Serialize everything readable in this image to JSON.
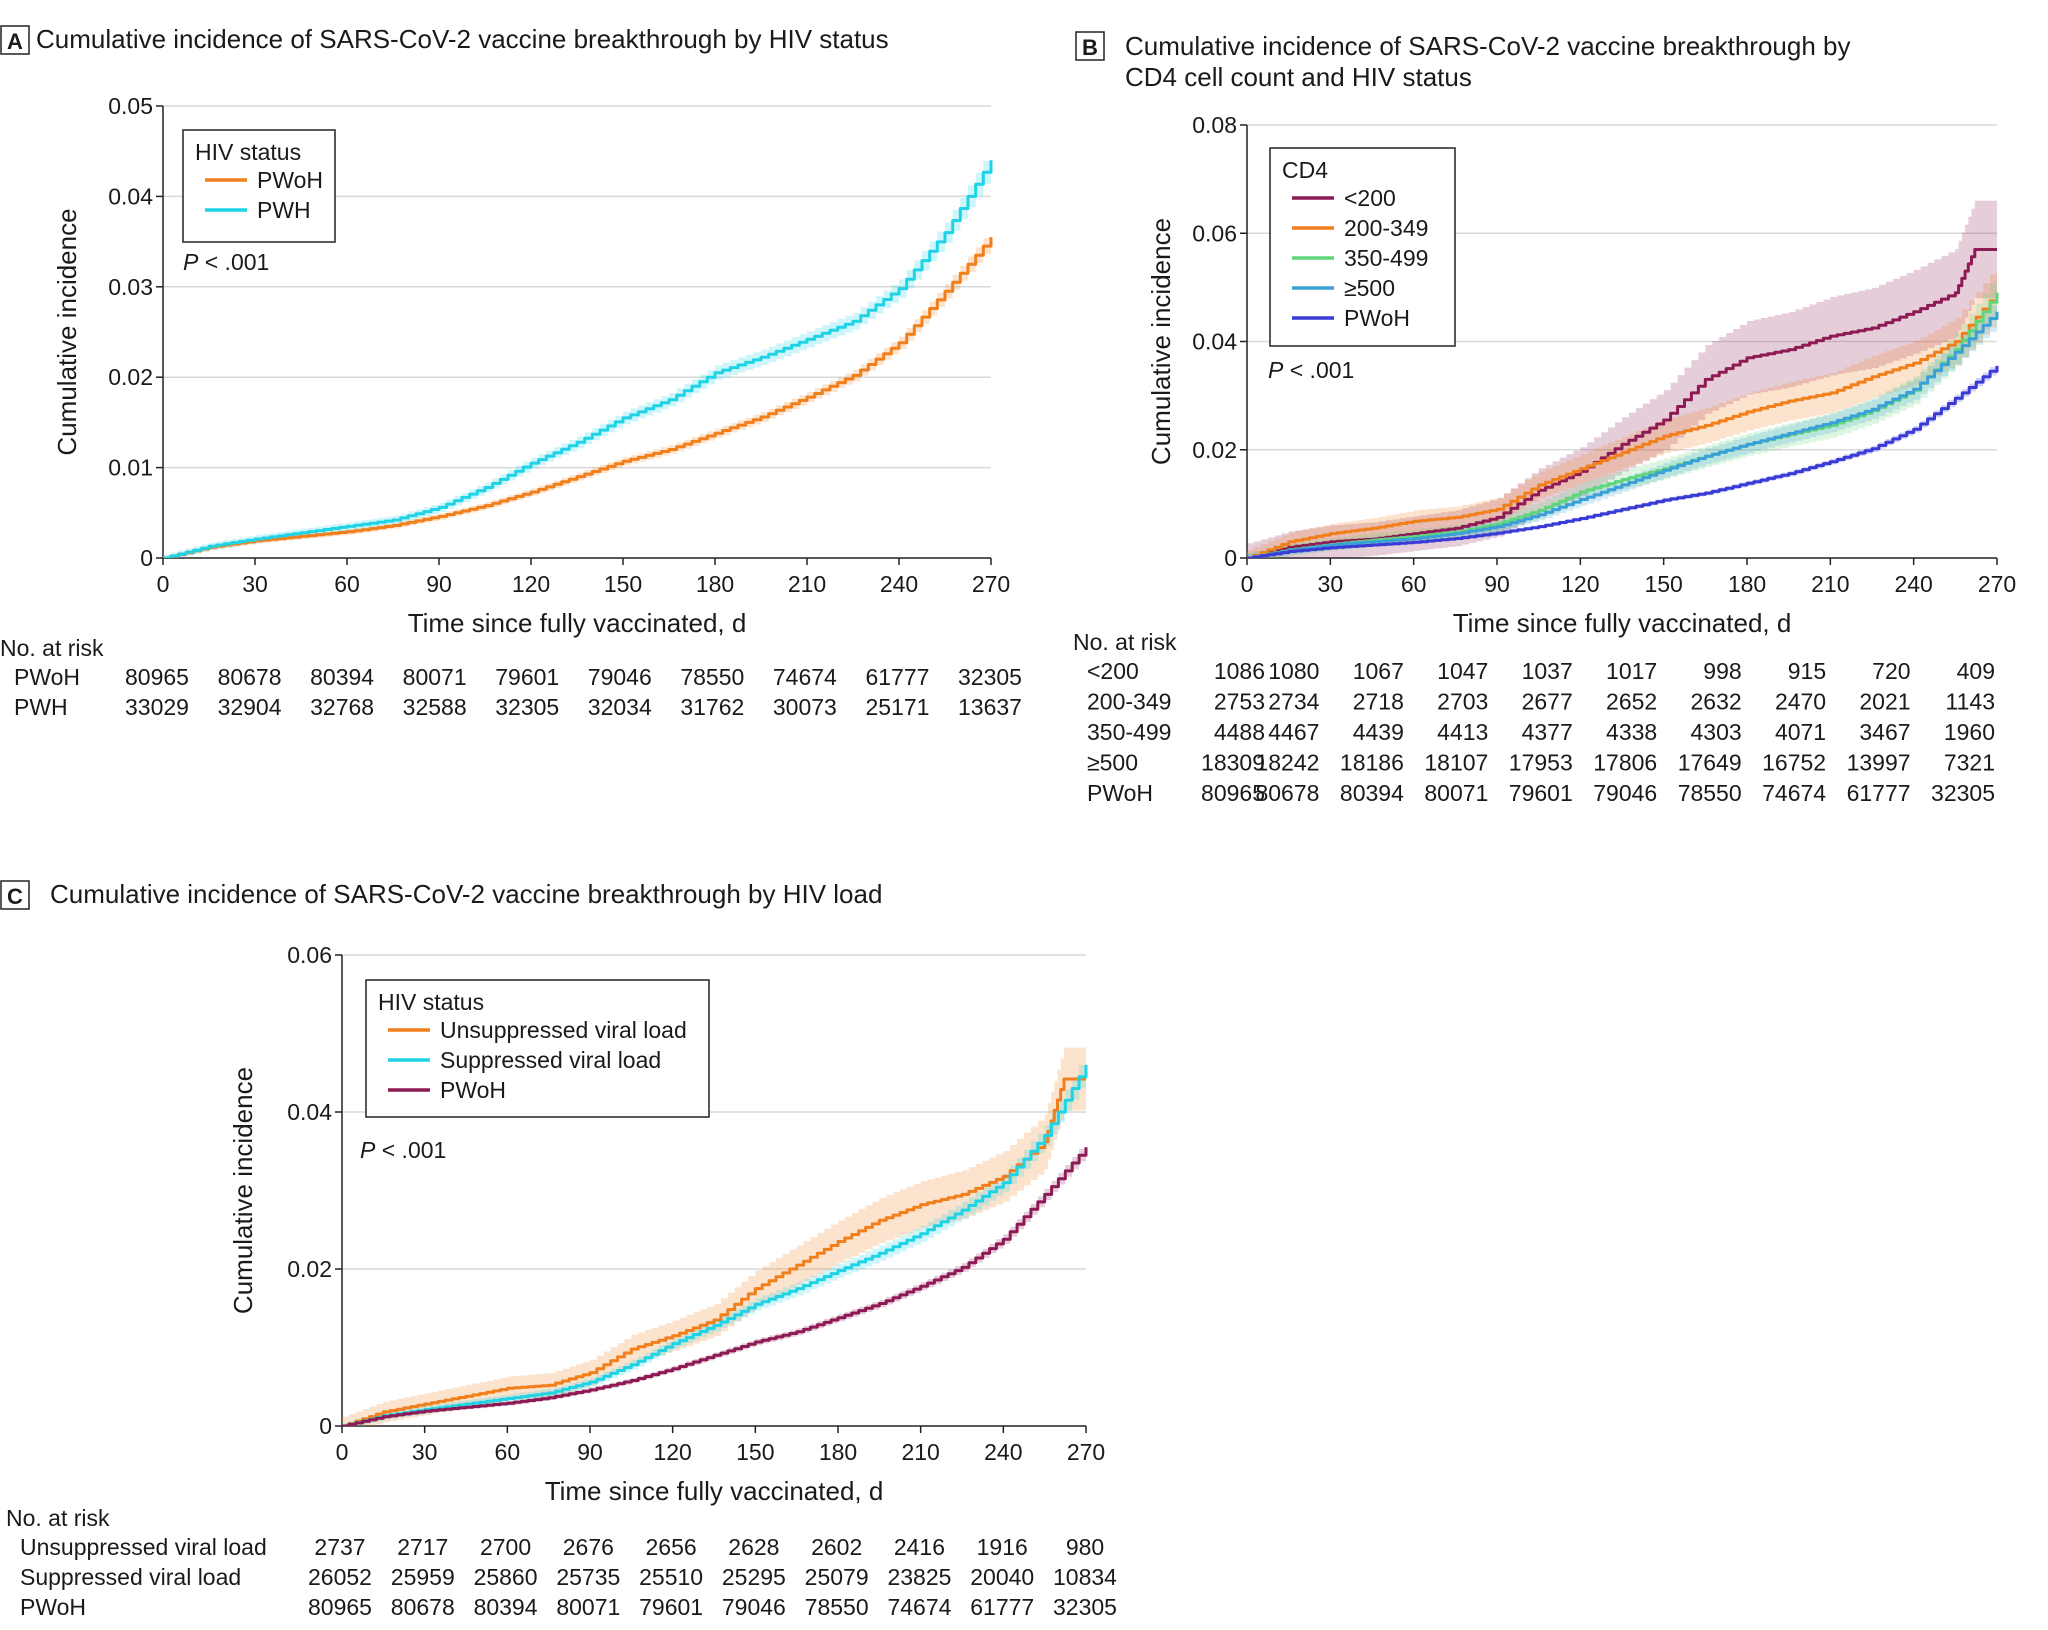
{
  "colors": {
    "grid": "#d9d9d9",
    "axis": "#222222",
    "orange": "#f07f1c",
    "cyan": "#1fd3e6",
    "maroon": "#8e1a55",
    "green": "#5fd67a",
    "blue": "#3ca0d8",
    "indigo": "#3a3ad6"
  },
  "chart_data": [
    {
      "panel": "A",
      "type": "line",
      "title": "Cumulative incidence of SARS-CoV-2 vaccine breakthrough by HIV status",
      "xlabel": "Time since fully vaccinated, d",
      "ylabel": "Cumulative incidence",
      "xlim": [
        0,
        270
      ],
      "ylim": [
        0,
        0.05
      ],
      "xticks": [
        0,
        30,
        60,
        90,
        120,
        150,
        180,
        210,
        240,
        270
      ],
      "yticks": [
        0,
        0.01,
        0.02,
        0.03,
        0.04,
        0.05
      ],
      "ytick_labels": [
        "0",
        "0.01",
        "0.02",
        "0.03",
        "0.04",
        "0.05"
      ],
      "grid": true,
      "legend_title": "HIV status",
      "legend_position": "top-left",
      "pvalue": {
        "p": "P",
        "rest": " < .001"
      },
      "series": [
        {
          "name": "PWoH",
          "color": "#f07f1c",
          "band": 0.0009,
          "x": [
            0,
            15,
            30,
            45,
            60,
            75,
            90,
            105,
            120,
            135,
            150,
            165,
            180,
            195,
            210,
            225,
            240,
            255,
            270
          ],
          "y": [
            0,
            0.0012,
            0.0019,
            0.0024,
            0.0029,
            0.0036,
            0.0046,
            0.0058,
            0.0073,
            0.009,
            0.0107,
            0.012,
            0.0138,
            0.0156,
            0.0178,
            0.0202,
            0.0238,
            0.0295,
            0.0355
          ]
        },
        {
          "name": "PWH",
          "color": "#1fd3e6",
          "band": 0.0013,
          "x": [
            0,
            15,
            30,
            45,
            60,
            75,
            90,
            105,
            120,
            135,
            150,
            165,
            180,
            195,
            210,
            225,
            240,
            255,
            270
          ],
          "y": [
            0,
            0.0013,
            0.0021,
            0.0028,
            0.0035,
            0.0042,
            0.0056,
            0.0078,
            0.0105,
            0.0128,
            0.0155,
            0.0175,
            0.0205,
            0.0222,
            0.0242,
            0.0262,
            0.0298,
            0.036,
            0.044
          ]
        }
      ],
      "risk_table": {
        "header": "No. at risk",
        "rows": [
          {
            "label": "PWoH",
            "values": [
              "80965",
              "80678",
              "80394",
              "80071",
              "79601",
              "79046",
              "78550",
              "74674",
              "61777",
              "32305"
            ]
          },
          {
            "label": "PWH",
            "values": [
              "33029",
              "32904",
              "32768",
              "32588",
              "32305",
              "32034",
              "31762",
              "30073",
              "25171",
              "13637"
            ]
          }
        ]
      }
    },
    {
      "panel": "B",
      "type": "line",
      "title": "Cumulative incidence of SARS-CoV-2 vaccine breakthrough by",
      "title_line2": "CD4 cell count and HIV status",
      "xlabel": "Time since fully vaccinated, d",
      "ylabel": "Cumulative incidence",
      "xlim": [
        0,
        270
      ],
      "ylim": [
        0,
        0.08
      ],
      "xticks": [
        0,
        30,
        60,
        90,
        120,
        150,
        180,
        210,
        240,
        270
      ],
      "yticks": [
        0,
        0.02,
        0.04,
        0.06,
        0.08
      ],
      "ytick_labels": [
        "0",
        "0.02",
        "0.04",
        "0.06",
        "0.08"
      ],
      "grid": true,
      "legend_title": "CD4",
      "legend_position": "top-left",
      "pvalue": {
        "p": "P",
        "rest": " < .001"
      },
      "series": [
        {
          "name": "<200",
          "color": "#8e1a55",
          "band": 0.009,
          "x": [
            0,
            15,
            30,
            45,
            60,
            75,
            90,
            105,
            120,
            135,
            150,
            165,
            180,
            195,
            210,
            225,
            240,
            255,
            262,
            270
          ],
          "y": [
            0,
            0.002,
            0.003,
            0.0035,
            0.0045,
            0.0055,
            0.0075,
            0.0125,
            0.016,
            0.021,
            0.0255,
            0.033,
            0.037,
            0.0385,
            0.041,
            0.0425,
            0.0455,
            0.049,
            0.057,
            0.057
          ]
        },
        {
          "name": "200-349",
          "color": "#f07f1c",
          "band": 0.005,
          "x": [
            0,
            15,
            30,
            45,
            60,
            75,
            90,
            105,
            120,
            135,
            150,
            165,
            180,
            195,
            210,
            225,
            240,
            255,
            270
          ],
          "y": [
            0,
            0.003,
            0.0045,
            0.0055,
            0.0068,
            0.0075,
            0.009,
            0.0135,
            0.0165,
            0.0195,
            0.0225,
            0.0245,
            0.027,
            0.029,
            0.0305,
            0.0335,
            0.036,
            0.04,
            0.049
          ]
        },
        {
          "name": "350-499",
          "color": "#5fd67a",
          "band": 0.0035,
          "x": [
            0,
            15,
            30,
            45,
            60,
            75,
            90,
            105,
            120,
            135,
            150,
            165,
            180,
            195,
            210,
            225,
            240,
            255,
            270
          ],
          "y": [
            0,
            0.0015,
            0.0025,
            0.0033,
            0.004,
            0.0048,
            0.0063,
            0.0088,
            0.0122,
            0.0145,
            0.0165,
            0.0188,
            0.021,
            0.0228,
            0.0245,
            0.0272,
            0.031,
            0.0385,
            0.049
          ]
        },
        {
          "name": "≥500",
          "color": "#3ca0d8",
          "band": 0.0025,
          "x": [
            0,
            15,
            30,
            45,
            60,
            75,
            90,
            105,
            120,
            135,
            150,
            165,
            180,
            195,
            210,
            225,
            240,
            255,
            270
          ],
          "y": [
            0,
            0.0014,
            0.0024,
            0.003,
            0.0036,
            0.0045,
            0.0058,
            0.008,
            0.0108,
            0.0135,
            0.0162,
            0.0188,
            0.021,
            0.023,
            0.025,
            0.0275,
            0.0312,
            0.038,
            0.0455
          ]
        },
        {
          "name": "PWoH",
          "color": "#3a3ad6",
          "band": 0.0008,
          "x": [
            0,
            15,
            30,
            45,
            60,
            75,
            90,
            105,
            120,
            135,
            150,
            165,
            180,
            195,
            210,
            225,
            240,
            255,
            270
          ],
          "y": [
            0,
            0.0012,
            0.0019,
            0.0024,
            0.0029,
            0.0036,
            0.0046,
            0.0058,
            0.0073,
            0.009,
            0.0107,
            0.012,
            0.0138,
            0.0156,
            0.0178,
            0.0202,
            0.0238,
            0.0295,
            0.0355
          ]
        }
      ],
      "risk_table": {
        "header": "No. at risk",
        "rows": [
          {
            "label": "<200",
            "values": [
              "1086",
              "1080",
              "1067",
              "1047",
              "1037",
              "1017",
              "998",
              "915",
              "720",
              "409"
            ]
          },
          {
            "label": "200-349",
            "values": [
              "2753",
              "2734",
              "2718",
              "2703",
              "2677",
              "2652",
              "2632",
              "2470",
              "2021",
              "1143"
            ]
          },
          {
            "label": "350-499",
            "values": [
              "4488",
              "4467",
              "4439",
              "4413",
              "4377",
              "4338",
              "4303",
              "4071",
              "3467",
              "1960"
            ]
          },
          {
            "label": "≥500",
            "values": [
              "18309",
              "18242",
              "18186",
              "18107",
              "17953",
              "17806",
              "17649",
              "16752",
              "13997",
              "7321"
            ]
          },
          {
            "label": "PWoH",
            "values": [
              "80965",
              "80678",
              "80394",
              "80071",
              "79601",
              "79046",
              "78550",
              "74674",
              "61777",
              "32305"
            ]
          }
        ]
      }
    },
    {
      "panel": "C",
      "type": "line",
      "title": "Cumulative incidence of SARS-CoV-2 vaccine breakthrough by HIV load",
      "xlabel": "Time since fully vaccinated, d",
      "ylabel": "Cumulative incidence",
      "xlim": [
        0,
        270
      ],
      "ylim": [
        0,
        0.06
      ],
      "xticks": [
        0,
        30,
        60,
        90,
        120,
        150,
        180,
        210,
        240,
        270
      ],
      "yticks": [
        0,
        0.02,
        0.04,
        0.06
      ],
      "ytick_labels": [
        "0",
        "0.02",
        "0.04",
        "0.06"
      ],
      "grid": true,
      "legend_title": "HIV status",
      "legend_position": "top-left",
      "pvalue": {
        "p": "P",
        "rest": " < .001"
      },
      "series": [
        {
          "name": "Unsuppressed viral load",
          "color": "#f07f1c",
          "band": 0.004,
          "x": [
            0,
            15,
            30,
            45,
            60,
            75,
            90,
            105,
            120,
            135,
            150,
            165,
            180,
            195,
            210,
            225,
            240,
            255,
            262,
            270
          ],
          "y": [
            0,
            0.0018,
            0.0028,
            0.0038,
            0.0048,
            0.0052,
            0.0068,
            0.0098,
            0.0115,
            0.0135,
            0.0175,
            0.0205,
            0.0235,
            0.0262,
            0.0282,
            0.0295,
            0.0318,
            0.0362,
            0.0442,
            0.0442
          ]
        },
        {
          "name": "Suppressed viral load",
          "color": "#1fd3e6",
          "band": 0.0015,
          "x": [
            0,
            15,
            30,
            45,
            60,
            75,
            90,
            105,
            120,
            135,
            150,
            165,
            180,
            195,
            210,
            225,
            240,
            255,
            270
          ],
          "y": [
            0,
            0.0013,
            0.0021,
            0.0028,
            0.0035,
            0.0042,
            0.0056,
            0.0078,
            0.0105,
            0.0128,
            0.0155,
            0.0175,
            0.0198,
            0.022,
            0.0245,
            0.0275,
            0.031,
            0.037,
            0.046
          ]
        },
        {
          "name": "PWoH",
          "color": "#8e1a55",
          "band": 0.0008,
          "x": [
            0,
            15,
            30,
            45,
            60,
            75,
            90,
            105,
            120,
            135,
            150,
            165,
            180,
            195,
            210,
            225,
            240,
            255,
            270
          ],
          "y": [
            0,
            0.0012,
            0.0019,
            0.0024,
            0.0029,
            0.0036,
            0.0046,
            0.0058,
            0.0073,
            0.009,
            0.0107,
            0.012,
            0.0138,
            0.0156,
            0.0178,
            0.0202,
            0.0238,
            0.0295,
            0.0355
          ]
        }
      ],
      "risk_table": {
        "header": "No. at risk",
        "rows": [
          {
            "label": "Unsuppressed viral load",
            "values": [
              "2737",
              "2717",
              "2700",
              "2676",
              "2656",
              "2628",
              "2602",
              "2416",
              "1916",
              "980"
            ]
          },
          {
            "label": "Suppressed viral load",
            "values": [
              "26052",
              "25959",
              "25860",
              "25735",
              "25510",
              "25295",
              "25079",
              "23825",
              "20040",
              "10834"
            ]
          },
          {
            "label": "PWoH",
            "values": [
              "80965",
              "80678",
              "80394",
              "80071",
              "79601",
              "79046",
              "78550",
              "74674",
              "61777",
              "32305"
            ]
          }
        ]
      }
    }
  ]
}
